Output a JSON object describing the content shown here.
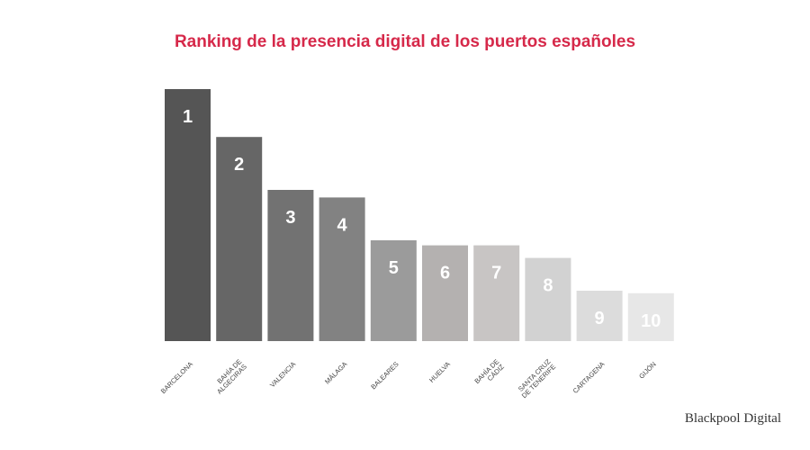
{
  "title": "Ranking de la presencia digital de los puertos españoles",
  "brand": "Blackpool Digital",
  "chart_data": {
    "type": "bar",
    "title": "Ranking de la presencia digital de los puertos españoles",
    "categories": [
      [
        "BARCELONA"
      ],
      [
        "BAHÍA DE",
        "ALGECIRAS"
      ],
      [
        "VALENCIA"
      ],
      [
        "MÁLAGA"
      ],
      [
        "BALEARES"
      ],
      [
        "HUELVA"
      ],
      [
        "BAHÍA DE",
        "CÁDIZ"
      ],
      [
        "SANTA CRUZ",
        "DE TENERIFE"
      ],
      [
        "CARTAGENA"
      ],
      [
        "GIJÓN"
      ]
    ],
    "ranks": [
      "1",
      "2",
      "3",
      "4",
      "5",
      "6",
      "7",
      "8",
      "9",
      "10"
    ],
    "values": [
      100,
      81,
      60,
      57,
      40,
      38,
      38,
      33,
      20,
      19
    ],
    "ylim": [
      0,
      100
    ],
    "grid": false,
    "colors": [
      "#555555",
      "#666666",
      "#727272",
      "#828282",
      "#9b9b9b",
      "#b4b1b0",
      "#c8c5c4",
      "#d2d2d2",
      "#dcdcdc",
      "#e7e7e7"
    ],
    "label_color": "#ffffff"
  }
}
